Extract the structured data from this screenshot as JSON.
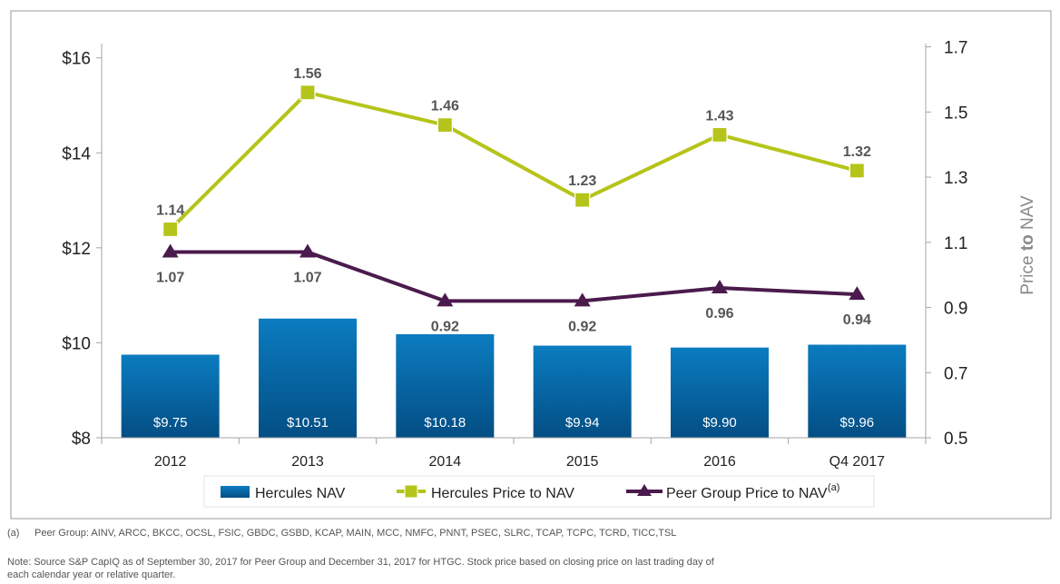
{
  "chart_data": {
    "type": "bar",
    "categories": [
      "2012",
      "2013",
      "2014",
      "2015",
      "2016",
      "Q4 2017"
    ],
    "left_axis": {
      "ticks": [
        "$8",
        "$10",
        "$12",
        "$14",
        "$16"
      ],
      "ylim": [
        8,
        16.3
      ]
    },
    "right_axis": {
      "label_pre": "Price ",
      "label_bold": "to",
      "label_post": " NAV",
      "ticks": [
        "0.5",
        "0.7",
        "0.9",
        "1.1",
        "1.3",
        "1.5",
        "1.7"
      ],
      "ylim": [
        0.5,
        1.71
      ]
    },
    "series": [
      {
        "name": "Hercules NAV",
        "kind": "bar",
        "axis": "left",
        "values": [
          9.75,
          10.51,
          10.18,
          9.94,
          9.9,
          9.96
        ],
        "labels": [
          "$9.75",
          "$10.51",
          "$10.18",
          "$9.94",
          "$9.90",
          "$9.96"
        ],
        "color": "#0a73b3"
      },
      {
        "name": "Hercules Price to NAV",
        "kind": "line",
        "axis": "right",
        "values": [
          1.14,
          1.56,
          1.46,
          1.23,
          1.43,
          1.32
        ],
        "labels": [
          "1.14",
          "1.56",
          "1.46",
          "1.23",
          "1.43",
          "1.32"
        ],
        "color": "#b5c41a"
      },
      {
        "name": "Peer Group Price to NAV",
        "name_sup": "(a)",
        "kind": "line",
        "axis": "right",
        "values": [
          1.07,
          1.07,
          0.92,
          0.92,
          0.96,
          0.94
        ],
        "labels": [
          "1.07",
          "1.07",
          "0.92",
          "0.92",
          "0.96",
          "0.94"
        ],
        "color": "#4b1b4d"
      }
    ],
    "legend_position": "bottom"
  },
  "footnotes": {
    "a_tag": "(a)",
    "a_text": "Peer Group: AINV, ARCC, BKCC, OCSL, FSIC, GBDC, GSBD, KCAP, MAIN, MCC, NMFC, PNNT, PSEC, SLRC, TCAP, TCPC, TCRD, TICC,TSL",
    "note": "Note: Source S&P CapIQ as of September 30, 2017 for Peer Group and December 31, 2017 for HTGC.  Stock price based on closing price on last trading day of each calendar year or  relative quarter."
  }
}
